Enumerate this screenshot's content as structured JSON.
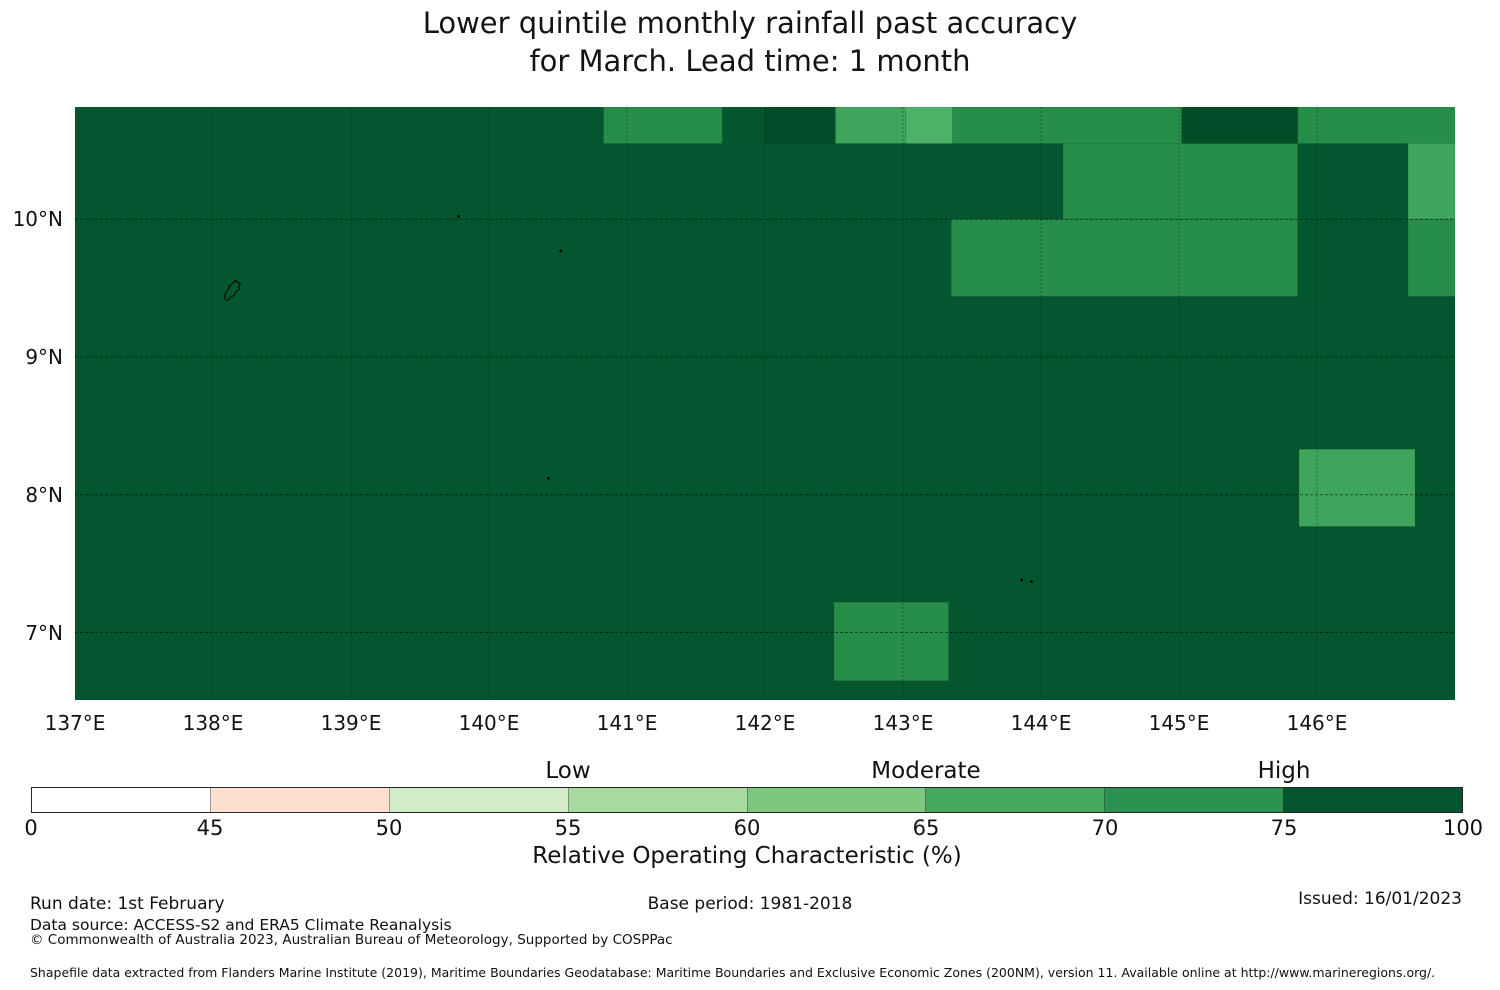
{
  "title": {
    "line1": "Lower quintile monthly rainfall past accuracy",
    "line2": "for March. Lead time: 1 month"
  },
  "chart_data": {
    "type": "heatmap",
    "title": "Lower quintile monthly rainfall past accuracy for March. Lead time: 1 month",
    "x_axis": {
      "range_lon": [
        137.0,
        147.0
      ],
      "ticks": [
        {
          "label": "137°E",
          "lon": 137
        },
        {
          "label": "138°E",
          "lon": 138
        },
        {
          "label": "139°E",
          "lon": 139
        },
        {
          "label": "140°E",
          "lon": 140
        },
        {
          "label": "141°E",
          "lon": 141
        },
        {
          "label": "142°E",
          "lon": 142
        },
        {
          "label": "143°E",
          "lon": 143
        },
        {
          "label": "144°E",
          "lon": 144
        },
        {
          "label": "145°E",
          "lon": 145
        },
        {
          "label": "146°E",
          "lon": 146
        }
      ]
    },
    "y_axis": {
      "range_lat": [
        6.51,
        10.815
      ],
      "ticks": [
        {
          "label": "10°N",
          "lat": 10
        },
        {
          "label": "9°N",
          "lat": 9
        },
        {
          "label": "8°N",
          "lat": 8
        },
        {
          "label": "7°N",
          "lat": 7
        }
      ]
    },
    "grid": true,
    "base_field": {
      "value_bin": "75-100",
      "color": "#04562f"
    },
    "cells": [
      {
        "lon": [
          140.83,
          141.69
        ],
        "lat": [
          10.815,
          10.55
        ],
        "value_bin": "70-75",
        "color": "#278d4a"
      },
      {
        "lon": [
          142.0,
          142.51
        ],
        "lat": [
          10.815,
          10.55
        ],
        "value_bin": "75-100",
        "color": "#004d27"
      },
      {
        "lon": [
          142.51,
          143.02
        ],
        "lat": [
          10.815,
          10.55
        ],
        "value_bin": "65-70",
        "color": "#3fa55c"
      },
      {
        "lon": [
          143.02,
          143.36
        ],
        "lat": [
          10.815,
          10.55
        ],
        "value_bin": "65-70",
        "color": "#4db168"
      },
      {
        "lon": [
          143.36,
          145.02
        ],
        "lat": [
          10.815,
          10.55
        ],
        "value_bin": "70-75",
        "color": "#278d4a"
      },
      {
        "lon": [
          145.02,
          145.86
        ],
        "lat": [
          10.815,
          10.55
        ],
        "value_bin": "75-100",
        "color": "#004d27"
      },
      {
        "lon": [
          145.86,
          147.0
        ],
        "lat": [
          10.815,
          10.55
        ],
        "value_bin": "70-75",
        "color": "#278d4a"
      },
      {
        "lon": [
          144.16,
          145.86
        ],
        "lat": [
          10.55,
          10.0
        ],
        "value_bin": "70-75",
        "color": "#278d4a"
      },
      {
        "lon": [
          146.66,
          147.0
        ],
        "lat": [
          10.55,
          10.0
        ],
        "value_bin": "65-70",
        "color": "#3fa55c"
      },
      {
        "lon": [
          143.35,
          145.86
        ],
        "lat": [
          10.0,
          9.44
        ],
        "value_bin": "70-75",
        "color": "#278d4a"
      },
      {
        "lon": [
          146.66,
          147.0
        ],
        "lat": [
          10.0,
          9.44
        ],
        "value_bin": "70-75",
        "color": "#278d4a"
      },
      {
        "lon": [
          145.87,
          146.71
        ],
        "lat": [
          8.33,
          7.77
        ],
        "value_bin": "65-70",
        "color": "#3fa55c"
      },
      {
        "lon": [
          142.5,
          143.33
        ],
        "lat": [
          7.22,
          6.65
        ],
        "value_bin": "70-75",
        "color": "#278d4a"
      }
    ],
    "islands": [
      {
        "name": "yap-island-outline",
        "lon": 138.14,
        "lat": 9.51,
        "shape": "outline"
      },
      {
        "name": "islet",
        "lon": 139.78,
        "lat": 10.02,
        "shape": "dot"
      },
      {
        "name": "islet",
        "lon": 140.52,
        "lat": 9.77,
        "shape": "dot"
      },
      {
        "name": "islet",
        "lon": 140.43,
        "lat": 8.12,
        "shape": "dot"
      },
      {
        "name": "islet",
        "lon": 143.86,
        "lat": 7.38,
        "shape": "dot"
      },
      {
        "name": "islet",
        "lon": 143.93,
        "lat": 7.37,
        "shape": "dot"
      }
    ],
    "colorbar": {
      "title": "Relative Operating Characteristic (%)",
      "tick_labels": [
        "0",
        "45",
        "50",
        "55",
        "60",
        "65",
        "70",
        "75",
        "100"
      ],
      "segments": [
        {
          "range": "0-45",
          "color": "#ffffff"
        },
        {
          "range": "45-50",
          "color": "#fcdfd1"
        },
        {
          "range": "50-55",
          "color": "#d2ecc9"
        },
        {
          "range": "55-60",
          "color": "#a8daa0"
        },
        {
          "range": "60-65",
          "color": "#7cc87f"
        },
        {
          "range": "65-70",
          "color": "#45aa60"
        },
        {
          "range": "70-75",
          "color": "#2b9150"
        },
        {
          "range": "75-100",
          "color": "#04562f"
        }
      ],
      "category_labels": [
        {
          "text": "Low",
          "tick_index": 3
        },
        {
          "text": "Moderate",
          "tick_index": 5
        },
        {
          "text": "High",
          "tick_index": 7
        }
      ],
      "legend_position": "bottom"
    }
  },
  "footer": {
    "run_date": "Run date: 1st February",
    "base_period": "Base period: 1981-2018",
    "issued": "Issued: 16/01/2023",
    "data_source": "Data source: ACCESS-S2 and ERA5 Climate Reanalysis",
    "copyright": "© Commonwealth of Australia 2023, Australian Bureau of Meteorology, Supported by COSPPac",
    "shapefile_note": "Shapefile data extracted from Flanders Marine Institute (2019), Maritime Boundaries Geodatabase: Maritime Boundaries and Exclusive Economic Zones (200NM), version 11. Available online at http://www.marineregions.org/."
  }
}
